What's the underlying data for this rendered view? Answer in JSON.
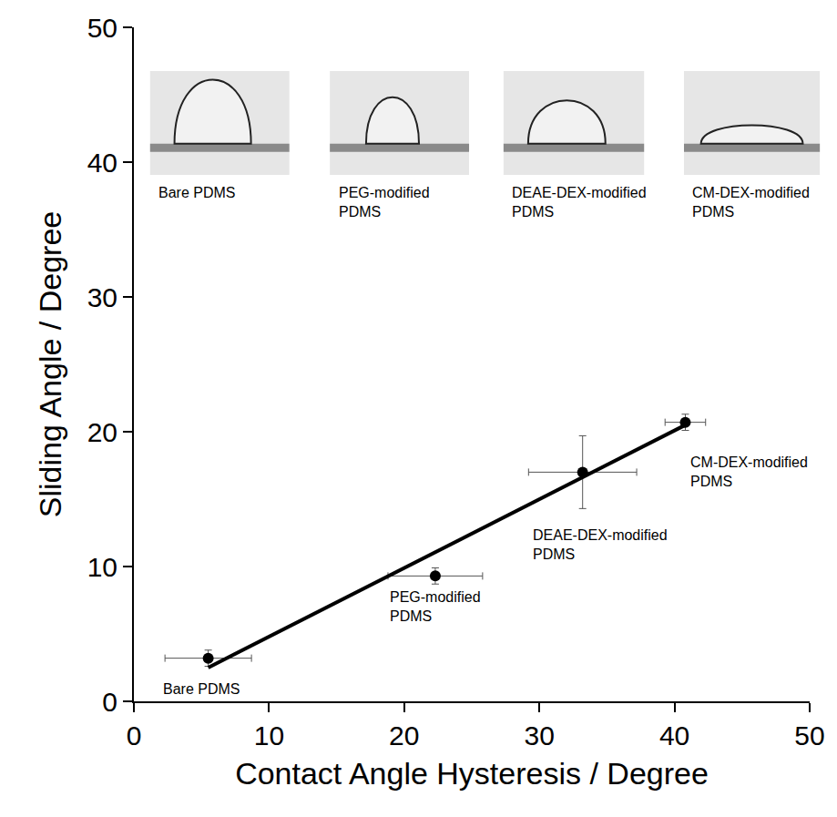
{
  "chart_data": {
    "type": "scatter",
    "xlabel": "Contact Angle Hysteresis / Degree",
    "ylabel": "Sliding Angle / Degree",
    "xlim": [
      0,
      50
    ],
    "ylim": [
      0,
      50
    ],
    "xticks": [
      0,
      10,
      20,
      30,
      40,
      50
    ],
    "yticks": [
      0,
      10,
      20,
      30,
      40,
      50
    ],
    "grid": false,
    "series": [
      {
        "type": "scatter",
        "color": "#000000",
        "marker": "circle",
        "x": [
          5.5,
          22.3,
          33.2,
          40.8
        ],
        "values": [
          3.2,
          9.3,
          17.0,
          20.7
        ],
        "x_error": [
          3.2,
          3.5,
          4.0,
          1.5
        ],
        "y_error": [
          0.6,
          0.6,
          2.7,
          0.6
        ],
        "labels": [
          "Bare PDMS",
          "PEG-modified PDMS",
          "DEAE-DEX-modified PDMS",
          "CM-DEX-modified PDMS"
        ]
      },
      {
        "type": "line",
        "color": "#000000",
        "line_style": "solid",
        "x": [
          5.5,
          40.8
        ],
        "values": [
          2.5,
          20.5
        ]
      }
    ],
    "insets": [
      "Bare PDMS",
      "PEG-modified PDMS",
      "DEAE-DEX-modified PDMS",
      "CM-DEX-modified PDMS"
    ]
  }
}
